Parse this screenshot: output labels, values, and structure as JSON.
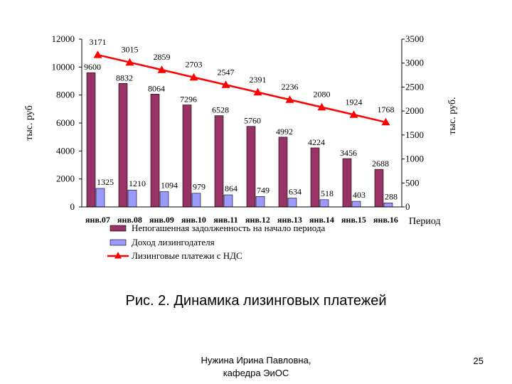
{
  "chart_data": {
    "type": "bar",
    "categories": [
      "янв.07",
      "янв.08",
      "янв.09",
      "янв.10",
      "янв.11",
      "янв.12",
      "янв.13",
      "янв.14",
      "янв.15",
      "янв.16"
    ],
    "series": [
      {
        "name": "Непогашенная задолженность на начало периода",
        "type": "bar",
        "axis": "left",
        "color": "#993366",
        "values": [
          9600,
          8832,
          8064,
          7296,
          6528,
          5760,
          4992,
          4224,
          3456,
          2688
        ]
      },
      {
        "name": "Доход лизингодателя",
        "type": "bar",
        "axis": "left",
        "color": "#9999ff",
        "values": [
          1325,
          1210,
          1094,
          979,
          864,
          749,
          634,
          518,
          403,
          288
        ]
      },
      {
        "name": "Лизинговые платежи с НДС",
        "type": "line",
        "axis": "right",
        "color": "#ff0000",
        "marker": "triangle",
        "values": [
          3171,
          3015,
          2859,
          2703,
          2547,
          2391,
          2236,
          2080,
          1924,
          1768
        ]
      }
    ],
    "y_left": {
      "label": "тыс. руб",
      "min": 0,
      "max": 12000,
      "ticks": [
        0,
        2000,
        4000,
        6000,
        8000,
        10000,
        12000
      ]
    },
    "y_right": {
      "label": "тыс. руб.",
      "min": 0,
      "max": 3500,
      "ticks": [
        0,
        500,
        1000,
        1500,
        2000,
        2500,
        3000,
        3500
      ]
    },
    "xlabel": "Период",
    "legend_position": "bottom",
    "grid": false
  },
  "caption": "Рис. 2. Динамика лизинговых платежей",
  "footer": {
    "line1": "Нужина Ирина Павловна,",
    "line2": "кафедра ЭиОС"
  },
  "page_number": "25"
}
